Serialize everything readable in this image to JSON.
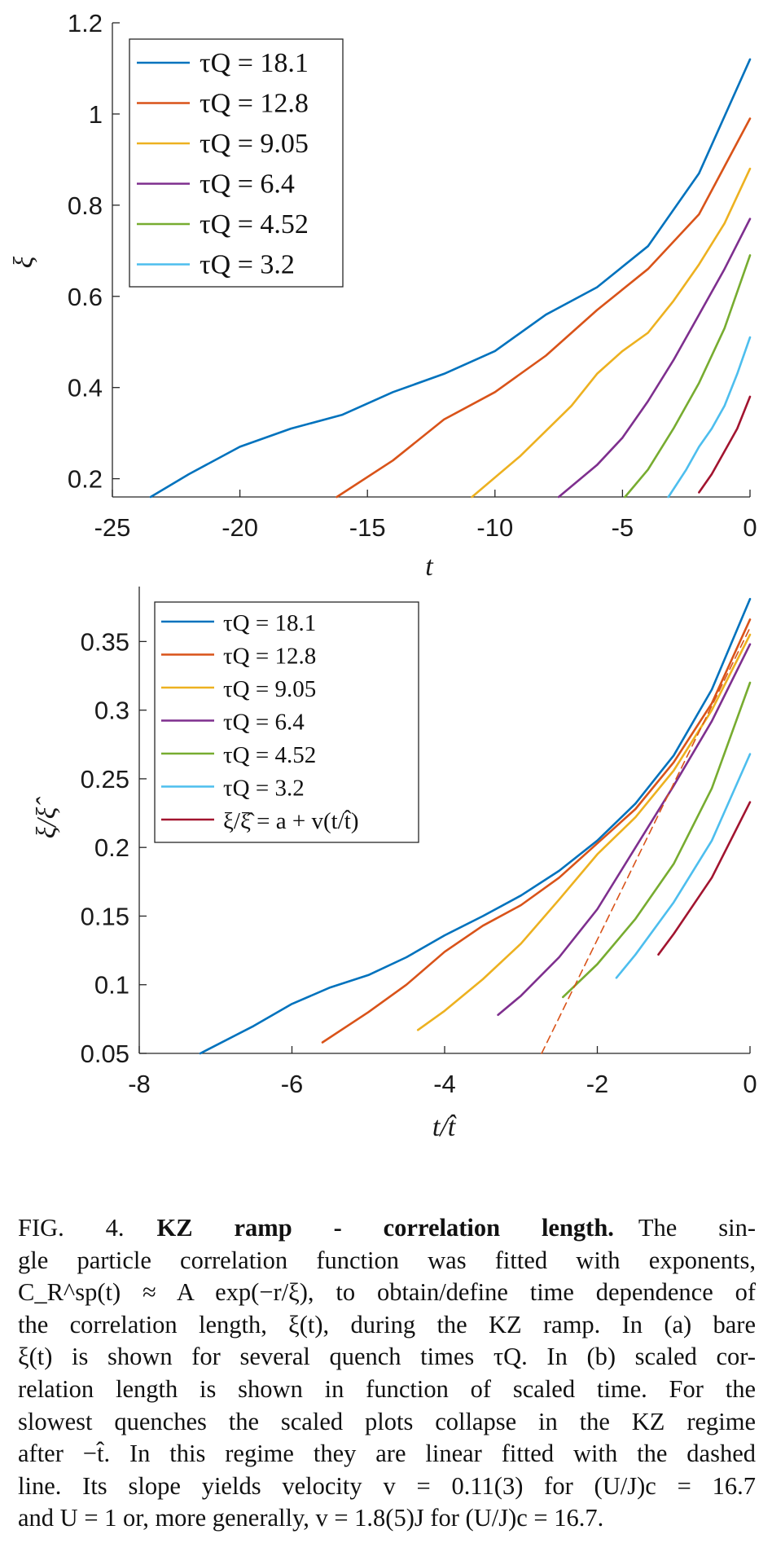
{
  "colors": {
    "blue": "#0072BD",
    "orange": "#D95319",
    "yellow": "#EDB120",
    "purple": "#7E2F8E",
    "green": "#77AC30",
    "cyan": "#4DBEEE",
    "darkred": "#A2142F"
  },
  "chart_data": [
    {
      "type": "line",
      "panel": "a",
      "xlabel": "t",
      "ylabel": "ξ",
      "xlim": [
        -25,
        0
      ],
      "ylim": [
        0.16,
        1.2
      ],
      "xticks": [
        -25,
        -20,
        -15,
        -10,
        -5,
        0
      ],
      "xtick_labels": [
        "-25",
        "-20",
        "-15",
        "-10",
        "-5",
        "0"
      ],
      "yticks": [
        0.2,
        0.4,
        0.6,
        0.8,
        1.0,
        1.2
      ],
      "ytick_labels": [
        "0.2",
        "0.4",
        "0.6",
        "0.8",
        "1",
        "1.2"
      ],
      "legend_position": "top-left",
      "series": [
        {
          "name": "τQ = 18.1",
          "color": "#0072BD",
          "x": [
            -23.5,
            -22,
            -20,
            -18,
            -16,
            -14,
            -12,
            -10,
            -8,
            -6,
            -4,
            -2,
            0
          ],
          "y": [
            0.16,
            0.21,
            0.27,
            0.31,
            0.34,
            0.39,
            0.43,
            0.48,
            0.56,
            0.62,
            0.71,
            0.87,
            1.12
          ]
        },
        {
          "name": "τQ = 12.8",
          "color": "#D95319",
          "x": [
            -16.2,
            -14,
            -12,
            -10,
            -8,
            -6,
            -4,
            -2,
            0
          ],
          "y": [
            0.16,
            0.24,
            0.33,
            0.39,
            0.47,
            0.57,
            0.66,
            0.78,
            0.99
          ]
        },
        {
          "name": "τQ = 9.05",
          "color": "#EDB120",
          "x": [
            -10.9,
            -9,
            -7,
            -6,
            -5,
            -4,
            -3,
            -2,
            -1,
            0
          ],
          "y": [
            0.16,
            0.25,
            0.36,
            0.43,
            0.48,
            0.52,
            0.59,
            0.67,
            0.76,
            0.88
          ]
        },
        {
          "name": "τQ = 6.4",
          "color": "#7E2F8E",
          "x": [
            -7.5,
            -6,
            -5,
            -4,
            -3,
            -2,
            -1,
            0
          ],
          "y": [
            0.16,
            0.23,
            0.29,
            0.37,
            0.46,
            0.56,
            0.66,
            0.77
          ]
        },
        {
          "name": "τQ = 4.52",
          "color": "#77AC30",
          "x": [
            -4.9,
            -4,
            -3,
            -2,
            -1,
            0
          ],
          "y": [
            0.16,
            0.22,
            0.31,
            0.41,
            0.53,
            0.69
          ]
        },
        {
          "name": "τQ = 3.2",
          "color": "#4DBEEE",
          "x": [
            -3.2,
            -2.5,
            -2,
            -1.5,
            -1,
            -0.5,
            0
          ],
          "y": [
            0.16,
            0.22,
            0.27,
            0.31,
            0.36,
            0.43,
            0.51
          ]
        },
        {
          "name": "",
          "color": "#A2142F",
          "x": [
            -2.0,
            -1.5,
            -1,
            -0.5,
            0
          ],
          "y": [
            0.17,
            0.21,
            0.26,
            0.31,
            0.38
          ]
        }
      ]
    },
    {
      "type": "line",
      "panel": "b",
      "xlabel": "t/t̂",
      "ylabel": "ξ/ξ̂",
      "xlim": [
        -8,
        0
      ],
      "ylim": [
        0.05,
        0.39
      ],
      "xticks": [
        -8,
        -6,
        -4,
        -2,
        0
      ],
      "xtick_labels": [
        "-8",
        "-6",
        "-4",
        "-2",
        "0"
      ],
      "yticks": [
        0.05,
        0.1,
        0.15,
        0.2,
        0.25,
        0.3,
        0.35
      ],
      "ytick_labels": [
        "0.05",
        "0.1",
        "0.15",
        "0.2",
        "0.25",
        "0.3",
        "0.35"
      ],
      "legend_position": "top-left",
      "series": [
        {
          "name": "τQ = 18.1",
          "color": "#0072BD",
          "x": [
            -7.2,
            -6.5,
            -6,
            -5.5,
            -5,
            -4.5,
            -4,
            -3.5,
            -3,
            -2.5,
            -2,
            -1.5,
            -1,
            -0.5,
            0
          ],
          "y": [
            0.05,
            0.07,
            0.086,
            0.098,
            0.107,
            0.12,
            0.136,
            0.15,
            0.165,
            0.183,
            0.205,
            0.232,
            0.267,
            0.315,
            0.381
          ]
        },
        {
          "name": "τQ = 12.8",
          "color": "#D95319",
          "x": [
            -5.6,
            -5,
            -4.5,
            -4,
            -3.5,
            -3,
            -2.5,
            -2,
            -1.5,
            -1,
            -0.5,
            0
          ],
          "y": [
            0.058,
            0.08,
            0.1,
            0.124,
            0.143,
            0.158,
            0.178,
            0.203,
            0.228,
            0.262,
            0.305,
            0.366
          ]
        },
        {
          "name": "τQ = 9.05",
          "color": "#EDB120",
          "x": [
            -4.35,
            -4,
            -3.5,
            -3,
            -2.5,
            -2,
            -1.5,
            -1,
            -0.5,
            0
          ],
          "y": [
            0.067,
            0.081,
            0.104,
            0.13,
            0.162,
            0.195,
            0.222,
            0.256,
            0.3,
            0.355
          ]
        },
        {
          "name": "τQ = 6.4",
          "color": "#7E2F8E",
          "x": [
            -3.3,
            -3,
            -2.5,
            -2,
            -1.5,
            -1,
            -0.5,
            0
          ],
          "y": [
            0.078,
            0.092,
            0.12,
            0.155,
            0.2,
            0.245,
            0.292,
            0.348
          ]
        },
        {
          "name": "τQ = 4.52",
          "color": "#77AC30",
          "x": [
            -2.45,
            -2,
            -1.5,
            -1,
            -0.5,
            0
          ],
          "y": [
            0.091,
            0.115,
            0.148,
            0.188,
            0.243,
            0.32
          ]
        },
        {
          "name": "τQ = 3.2",
          "color": "#4DBEEE",
          "x": [
            -1.75,
            -1.5,
            -1,
            -0.5,
            0
          ],
          "y": [
            0.105,
            0.122,
            0.16,
            0.205,
            0.268
          ]
        },
        {
          "name": "ξ/ξ̂ = a + v(t/t̂)",
          "color": "#A2142F",
          "x": [
            -1.2,
            -1,
            -0.5,
            0
          ],
          "y": [
            0.122,
            0.137,
            0.178,
            0.233
          ]
        },
        {
          "name": "",
          "color": "#D95319",
          "dashed": true,
          "x": [
            -2.73,
            0
          ],
          "y": [
            0.05,
            0.36
          ]
        }
      ]
    }
  ],
  "caption": {
    "label": "FIG. 4.",
    "title": "KZ ramp - correlation length.",
    "lines": [
      "The sin-",
      "gle particle correlation function was fitted with exponents,",
      "C_R^sp(t) ≈ A exp(−r/ξ), to obtain/define time dependence of",
      "the correlation length, ξ(t), during the KZ ramp. In (a) bare",
      "ξ(t) is shown for several quench times τQ. In (b) scaled cor-",
      "relation length is shown in function of scaled time. For the",
      "slowest quenches the scaled plots collapse in the KZ regime",
      "after −t̂. In this regime they are linear fitted with the dashed",
      "line. Its slope yields velocity v = 0.11(3) for (U/J)c = 16.7",
      "and U = 1 or, more generally, v = 1.8(5)J for (U/J)c = 16.7."
    ]
  }
}
